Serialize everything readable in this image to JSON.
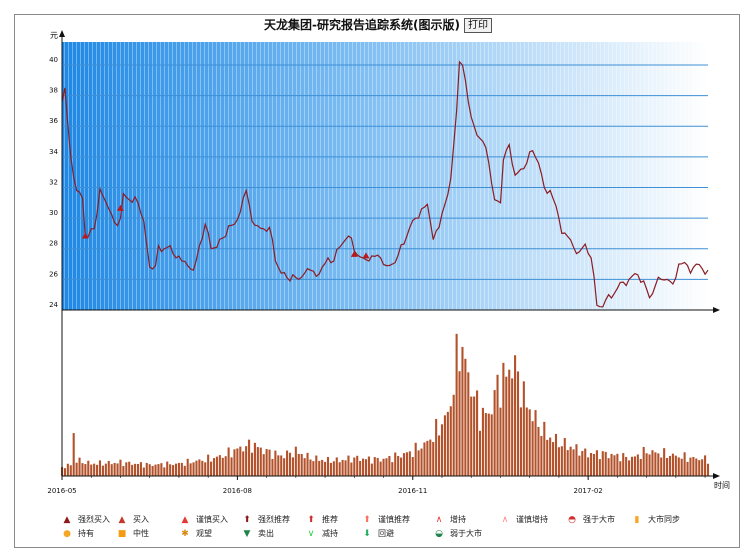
{
  "title": "天龙集团-研究报告追踪系统(图示版)",
  "print_label": "打印",
  "chart_data": {
    "type": "line",
    "ylabel": "元",
    "xlabel": "时间",
    "ylim": [
      24,
      41.5
    ],
    "yticks": [
      24,
      26,
      28,
      30,
      32,
      34,
      36,
      38,
      40
    ],
    "xticks": [
      {
        "label": "2016-05",
        "i": 0
      },
      {
        "label": "2016-08",
        "i": 60
      },
      {
        "label": "2016-11",
        "i": 120
      },
      {
        "label": "2017-02",
        "i": 180
      }
    ],
    "n_points": 222,
    "price_keys": [
      [
        0,
        37.6
      ],
      [
        1,
        38.5
      ],
      [
        3,
        34
      ],
      [
        5,
        31.8
      ],
      [
        6,
        31.7
      ],
      [
        7,
        31.3
      ],
      [
        8,
        28.7
      ],
      [
        9,
        28.8
      ],
      [
        11,
        29.3
      ],
      [
        13,
        31.9
      ],
      [
        16,
        30.6
      ],
      [
        18,
        29.7
      ],
      [
        20,
        30.0
      ],
      [
        21,
        31.6
      ],
      [
        23,
        31.2
      ],
      [
        26,
        31.0
      ],
      [
        28,
        29.8
      ],
      [
        30,
        26.8
      ],
      [
        32,
        26.9
      ],
      [
        33,
        28.2
      ],
      [
        35,
        28.0
      ],
      [
        37,
        28.2
      ],
      [
        39,
        27.4
      ],
      [
        41,
        27.2
      ],
      [
        43,
        26.9
      ],
      [
        45,
        26.6
      ],
      [
        47,
        28.2
      ],
      [
        49,
        29.6
      ],
      [
        51,
        28.0
      ],
      [
        53,
        28.1
      ],
      [
        55,
        28.7
      ],
      [
        57,
        29.5
      ],
      [
        59,
        29.6
      ],
      [
        61,
        30.4
      ],
      [
        63,
        31.8
      ],
      [
        65,
        29.8
      ],
      [
        67,
        29.5
      ],
      [
        69,
        29.3
      ],
      [
        71,
        29.4
      ],
      [
        73,
        27.2
      ],
      [
        75,
        26.4
      ],
      [
        77,
        26.1
      ],
      [
        79,
        26.3
      ],
      [
        81,
        26.0
      ],
      [
        83,
        26.4
      ],
      [
        85,
        26.6
      ],
      [
        87,
        26.2
      ],
      [
        89,
        26.8
      ],
      [
        91,
        27.4
      ],
      [
        93,
        27.2
      ],
      [
        95,
        28.1
      ],
      [
        97,
        28.6
      ],
      [
        99,
        28.7
      ],
      [
        101,
        27.6
      ],
      [
        103,
        27.4
      ],
      [
        105,
        27.2
      ],
      [
        107,
        27.5
      ],
      [
        109,
        27.4
      ],
      [
        111,
        26.9
      ],
      [
        113,
        27.0
      ],
      [
        115,
        27.6
      ],
      [
        117,
        28.3
      ],
      [
        119,
        29.4
      ],
      [
        121,
        30.0
      ],
      [
        123,
        30.6
      ],
      [
        125,
        30.9
      ],
      [
        127,
        28.6
      ],
      [
        129,
        29.4
      ],
      [
        131,
        30.9
      ],
      [
        133,
        32.6
      ],
      [
        135,
        37.0
      ],
      [
        136,
        40.2
      ],
      [
        137,
        40.0
      ],
      [
        138,
        39.0
      ],
      [
        140,
        36.6
      ],
      [
        142,
        35.4
      ],
      [
        144,
        35.0
      ],
      [
        146,
        33.6
      ],
      [
        148,
        31.2
      ],
      [
        150,
        31.0
      ],
      [
        151,
        33.8
      ],
      [
        153,
        34.8
      ],
      [
        155,
        32.8
      ],
      [
        157,
        33.2
      ],
      [
        159,
        33.6
      ],
      [
        161,
        34.4
      ],
      [
        163,
        33.6
      ],
      [
        165,
        32.0
      ],
      [
        167,
        31.8
      ],
      [
        169,
        30.8
      ],
      [
        171,
        29.0
      ],
      [
        173,
        28.8
      ],
      [
        175,
        28.1
      ],
      [
        177,
        27.8
      ],
      [
        179,
        28.3
      ],
      [
        181,
        27.4
      ],
      [
        183,
        24.3
      ],
      [
        185,
        24.2
      ],
      [
        187,
        25.0
      ],
      [
        189,
        25.1
      ],
      [
        191,
        25.8
      ],
      [
        193,
        25.6
      ],
      [
        195,
        26.2
      ],
      [
        197,
        26.3
      ],
      [
        199,
        25.9
      ],
      [
        201,
        24.8
      ],
      [
        203,
        25.6
      ],
      [
        205,
        26.0
      ],
      [
        207,
        26.0
      ],
      [
        209,
        25.7
      ],
      [
        211,
        27.0
      ],
      [
        213,
        27.1
      ],
      [
        215,
        26.4
      ],
      [
        217,
        27.0
      ],
      [
        219,
        26.7
      ],
      [
        221,
        26.6
      ]
    ],
    "rating_marks": [
      {
        "i": 8,
        "v": 28.8
      },
      {
        "i": 20,
        "v": 30.6
      },
      {
        "i": 100,
        "v": 27.6
      },
      {
        "i": 104,
        "v": 27.5
      }
    ],
    "volume_keys": [
      [
        0,
        8
      ],
      [
        3,
        10
      ],
      [
        4,
        38
      ],
      [
        5,
        14
      ],
      [
        10,
        11
      ],
      [
        20,
        12
      ],
      [
        30,
        10
      ],
      [
        40,
        11
      ],
      [
        50,
        15
      ],
      [
        55,
        18
      ],
      [
        60,
        24
      ],
      [
        65,
        28
      ],
      [
        70,
        22
      ],
      [
        75,
        18
      ],
      [
        80,
        22
      ],
      [
        85,
        16
      ],
      [
        90,
        14
      ],
      [
        95,
        14
      ],
      [
        100,
        16
      ],
      [
        105,
        15
      ],
      [
        110,
        15
      ],
      [
        115,
        18
      ],
      [
        120,
        22
      ],
      [
        125,
        30
      ],
      [
        128,
        40
      ],
      [
        132,
        55
      ],
      [
        134,
        80
      ],
      [
        136,
        122
      ],
      [
        138,
        100
      ],
      [
        140,
        80
      ],
      [
        143,
        55
      ],
      [
        146,
        55
      ],
      [
        149,
        80
      ],
      [
        152,
        90
      ],
      [
        154,
        100
      ],
      [
        156,
        90
      ],
      [
        158,
        70
      ],
      [
        162,
        50
      ],
      [
        166,
        36
      ],
      [
        170,
        30
      ],
      [
        175,
        25
      ],
      [
        180,
        20
      ],
      [
        185,
        20
      ],
      [
        190,
        18
      ],
      [
        195,
        16
      ],
      [
        200,
        22
      ],
      [
        205,
        20
      ],
      [
        210,
        18
      ],
      [
        215,
        16
      ],
      [
        221,
        15
      ]
    ],
    "volume_max": 122,
    "colors": {
      "line": "#8c1c22",
      "grid": "#3d8fd6",
      "volume": "#b3522a",
      "mark": "#b8191e"
    }
  },
  "legend": [
    {
      "label": "强烈买入",
      "icon": "strong-buy-icon",
      "glyph": "▲",
      "color": "#8b1a1a"
    },
    {
      "label": "买入",
      "icon": "buy-icon",
      "glyph": "▲",
      "color": "#c0392b"
    },
    {
      "label": "谨慎买入",
      "icon": "cautious-buy-icon",
      "glyph": "▲",
      "color": "#e53935"
    },
    {
      "label": "强烈推荐",
      "icon": "strong-recommend-icon",
      "glyph": "⬆",
      "color": "#8b1a1a"
    },
    {
      "label": "推荐",
      "icon": "recommend-icon",
      "glyph": "⬆",
      "color": "#d32f2f"
    },
    {
      "label": "谨慎推荐",
      "icon": "cautious-recommend-icon",
      "glyph": "⬆",
      "color": "#ff6f61"
    },
    {
      "label": "增持",
      "icon": "overweight-icon",
      "glyph": "∧",
      "color": "#e53935"
    },
    {
      "label": "谨慎增持",
      "icon": "cautious-overweight-icon",
      "glyph": "∧",
      "color": "#ff8a80"
    },
    {
      "label": "强于大市",
      "icon": "outperform-icon",
      "glyph": "◓",
      "color": "#d32f2f"
    },
    {
      "label": "大市同步",
      "icon": "market-perform-icon",
      "glyph": "▮",
      "color": "#f5a623"
    },
    {
      "label": "持有",
      "icon": "hold-icon",
      "glyph": "●",
      "color": "#f5a623"
    },
    {
      "label": "中性",
      "icon": "neutral-icon",
      "glyph": "■",
      "color": "#f39c12"
    },
    {
      "label": "观望",
      "icon": "watch-icon",
      "glyph": "✱",
      "color": "#d68910"
    },
    {
      "label": "卖出",
      "icon": "sell-icon",
      "glyph": "▼",
      "color": "#1e8449"
    },
    {
      "label": "减持",
      "icon": "underweight-icon",
      "glyph": "∨",
      "color": "#2ecc40"
    },
    {
      "label": "回避",
      "icon": "avoid-icon",
      "glyph": "⬇",
      "color": "#27ae60"
    },
    {
      "label": "弱于大市",
      "icon": "underperform-icon",
      "glyph": "◒",
      "color": "#1e8449"
    }
  ]
}
